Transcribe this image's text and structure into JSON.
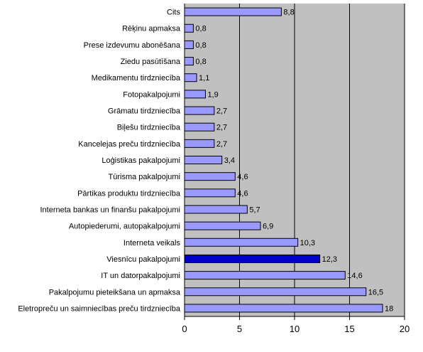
{
  "chart_data": {
    "type": "bar",
    "orientation": "horizontal",
    "categories": [
      "Cits",
      "Rēķinu apmaksa",
      "Prese izdevumu abonēšana",
      "Ziedu pasūtīšana",
      "Medikamentu tirdzniecība",
      "Fotopakalpojumi",
      "Grāmatu tirdzniecība",
      "Biļešu tirdzniecība",
      "Kancelejas preču tirdzniecība",
      "Loģistikas pakalpojumi",
      "Tūrisma pakalpojumi",
      "Pārtikas produktu tirdzniecība",
      "Interneta bankas un finanšu pakalpojumi",
      "Autopiederumi, autopakalpojumi",
      "Interneta veikals",
      "Viesnīcu pakalpojumi",
      "IT un datorpakalpojumi",
      "Pakalpojumu pieteikšana un apmaksa",
      "Eletropreču un saimniecības preču tirdzniecība"
    ],
    "values": [
      8.8,
      0.8,
      0.8,
      0.8,
      1.1,
      1.9,
      2.7,
      2.7,
      2.7,
      3.4,
      4.6,
      4.6,
      5.7,
      6.9,
      10.3,
      12.3,
      14.6,
      16.5,
      18
    ],
    "value_labels": [
      "8,8",
      "0,8",
      "0,8",
      "0,8",
      "1,1",
      "1,9",
      "2,7",
      "2,7",
      "2,7",
      "3,4",
      "4,6",
      "4,6",
      "5,7",
      "6,9",
      "10,3",
      "12,3",
      "14,6",
      "16,5",
      "18"
    ],
    "highlight_index": 15,
    "xlim": [
      0,
      20
    ],
    "xticks": [
      0,
      5,
      10,
      15,
      20
    ],
    "xtick_labels": [
      "0",
      "5",
      "10",
      "15",
      "20"
    ],
    "grid": "vertical",
    "colors": {
      "bar": "#9999FF",
      "highlight": "#0000CC",
      "plot_bg": "#C0C0C0",
      "bar_stroke": "#000000"
    }
  }
}
